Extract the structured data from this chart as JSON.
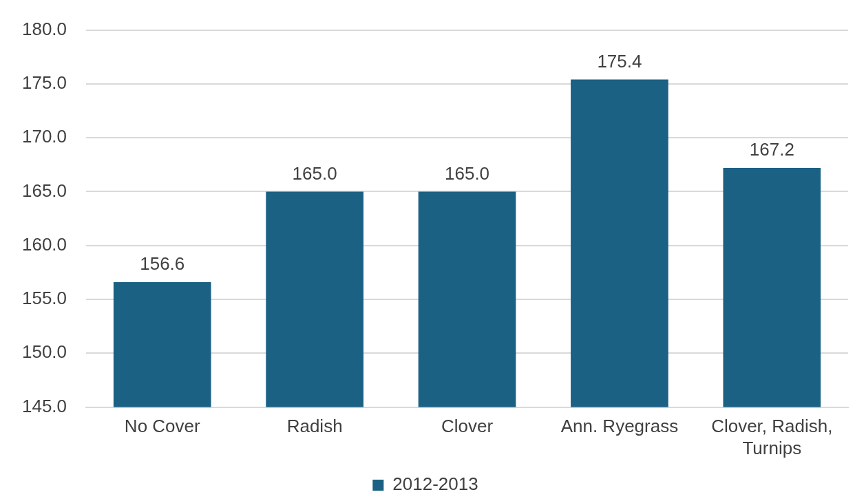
{
  "chart_data": {
    "type": "bar",
    "categories": [
      "No Cover",
      "Radish",
      "Clover",
      "Ann. Ryegrass",
      "Clover, Radish, Turnips"
    ],
    "series": [
      {
        "name": "2012-2013",
        "color": "#1a6184",
        "values": [
          156.6,
          165.0,
          165.0,
          175.4,
          167.2
        ],
        "value_labels": [
          "156.6",
          "165.0",
          "165.0",
          "175.4",
          "167.2"
        ]
      }
    ],
    "ylim": [
      145,
      180
    ],
    "yticks": [
      {
        "value": 145,
        "label": "145.0"
      },
      {
        "value": 150,
        "label": "150.0"
      },
      {
        "value": 155,
        "label": "155.0"
      },
      {
        "value": 160,
        "label": "160.0"
      },
      {
        "value": 165,
        "label": "165.0"
      },
      {
        "value": 170,
        "label": "170.0"
      },
      {
        "value": 175,
        "label": "175.0"
      },
      {
        "value": 180,
        "label": "180.0"
      }
    ],
    "grid": "y",
    "legend": "bottom"
  }
}
